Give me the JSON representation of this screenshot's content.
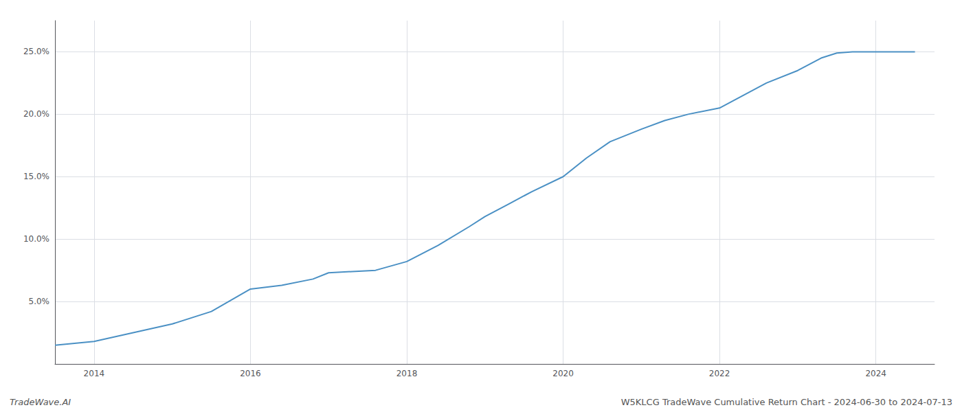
{
  "chart_data": {
    "type": "line",
    "annotations": [
      "TradeWave.AI",
      "W5KLCG TradeWave Cumulative Return Chart - 2024-06-30 to 2024-07-13"
    ],
    "x": [
      2013.5,
      2014.0,
      2014.5,
      2015.0,
      2015.5,
      2016.0,
      2016.4,
      2016.8,
      2017.0,
      2017.3,
      2017.6,
      2018.0,
      2018.4,
      2018.8,
      2019.0,
      2019.3,
      2019.6,
      2020.0,
      2020.3,
      2020.6,
      2021.0,
      2021.3,
      2021.6,
      2022.0,
      2022.3,
      2022.6,
      2023.0,
      2023.3,
      2023.5,
      2023.7,
      2024.0,
      2024.5
    ],
    "values": [
      1.5,
      1.8,
      2.5,
      3.2,
      4.2,
      6.0,
      6.3,
      6.8,
      7.3,
      7.4,
      7.5,
      8.2,
      9.5,
      11.0,
      11.8,
      12.8,
      13.8,
      15.0,
      16.5,
      17.8,
      18.8,
      19.5,
      20.0,
      20.5,
      21.5,
      22.5,
      23.5,
      24.5,
      24.9,
      25.0,
      25.0,
      25.0
    ],
    "color": "#4a90c4",
    "xlim": [
      2013.5,
      2024.75
    ],
    "ylim": [
      0.0,
      27.5
    ],
    "xticks": [
      2014,
      2016,
      2018,
      2020,
      2022,
      2024
    ],
    "yticks": [
      {
        "value": 5.0,
        "label": "5.0%"
      },
      {
        "value": 10.0,
        "label": "10.0%"
      },
      {
        "value": 15.0,
        "label": "15.0%"
      },
      {
        "value": 20.0,
        "label": "20.0%"
      },
      {
        "value": 25.0,
        "label": "25.0%"
      }
    ],
    "grid": true
  }
}
